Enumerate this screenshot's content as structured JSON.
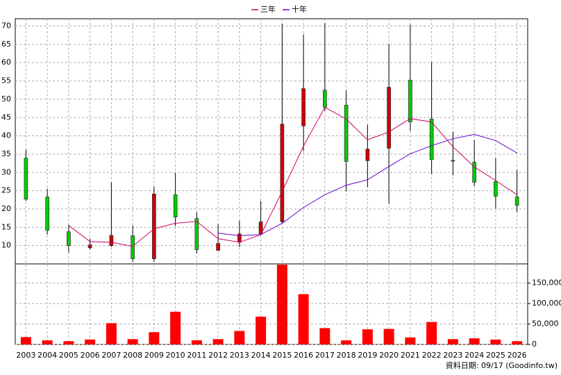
{
  "chart_data": {
    "type": "candlestick",
    "categories": [
      "2003",
      "2004",
      "2005",
      "2006",
      "2007",
      "2008",
      "2009",
      "2010",
      "2011",
      "2012",
      "2013",
      "2014",
      "2015",
      "2016",
      "2017",
      "2018",
      "2019",
      "2020",
      "2021",
      "2022",
      "2023",
      "2024",
      "2025",
      "2026"
    ],
    "open": [
      33.9,
      23.3,
      13.8,
      9.4,
      10.0,
      12.7,
      6.4,
      23.9,
      17.4,
      8.7,
      10.9,
      13.2,
      16.5,
      42.7,
      52.5,
      48.4,
      33.2,
      36.6,
      55.2,
      44.6,
      33.1,
      32.8,
      27.5,
      23.3
    ],
    "high": [
      36.2,
      25.6,
      15.7,
      11.9,
      27.3,
      15.5,
      26.1,
      29.9,
      19.1,
      15.9,
      16.8,
      22.2,
      70.6,
      67.7,
      70.8,
      52.5,
      43.0,
      65.1,
      70.4,
      60.1,
      41.1,
      38.9,
      33.9,
      30.7
    ],
    "low": [
      22.2,
      13.0,
      8.1,
      8.9,
      9.6,
      5.6,
      5.6,
      15.3,
      7.9,
      8.5,
      9.6,
      12.8,
      16.1,
      35.8,
      46.8,
      24.8,
      26.0,
      21.4,
      41.3,
      29.6,
      29.2,
      26.3,
      20.1,
      19.1
    ],
    "close": [
      22.7,
      14.2,
      10.0,
      10.2,
      12.8,
      6.4,
      24.1,
      17.8,
      8.9,
      10.6,
      13.2,
      16.5,
      43.2,
      52.9,
      47.8,
      33.0,
      36.4,
      53.3,
      43.8,
      33.5,
      33.3,
      27.3,
      23.5,
      21.0
    ],
    "up_color": "#cc0000",
    "down_color": "#00cc00",
    "series": [
      {
        "name": "三年",
        "color": "#cc0066",
        "values": [
          null,
          null,
          15.5,
          11.1,
          10.9,
          9.8,
          14.6,
          16.1,
          16.6,
          11.9,
          10.9,
          13.0,
          24.8,
          37.2,
          47.8,
          44.6,
          38.9,
          41.1,
          44.7,
          43.8,
          37.0,
          31.5,
          27.8,
          23.9
        ]
      },
      {
        "name": "十年",
        "color": "#6600cc",
        "values": [
          null,
          null,
          null,
          null,
          null,
          null,
          null,
          null,
          null,
          13.4,
          12.7,
          13.0,
          16.1,
          20.4,
          23.9,
          26.5,
          28.0,
          31.6,
          35.1,
          37.3,
          39.2,
          40.4,
          38.7,
          35.3
        ]
      }
    ],
    "ylim": [
      5,
      72
    ],
    "yticks": [
      10,
      15,
      20,
      25,
      30,
      35,
      40,
      45,
      50,
      55,
      60,
      65,
      70
    ],
    "grid": true,
    "volume": {
      "type": "bar",
      "color": "#ff0000",
      "values": [
        18000,
        10000,
        8000,
        12000,
        52000,
        13000,
        30000,
        80000,
        10000,
        13000,
        33000,
        68000,
        195000,
        123000,
        40000,
        10000,
        37000,
        38000,
        17000,
        55000,
        13000,
        15000,
        12000,
        8000
      ],
      "ylim": [
        0,
        197000
      ],
      "yticks": [
        0,
        {
          "value": 50000,
          "label": "50,000"
        },
        {
          "value": 100000,
          "label": "100,000"
        },
        {
          "value": 150000,
          "label": "150,000"
        }
      ]
    },
    "source": "資料日期: 09/17 (Goodinfo.tw)"
  }
}
